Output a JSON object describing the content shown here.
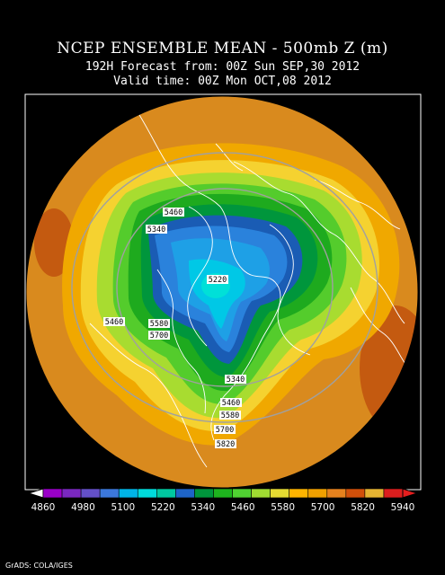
{
  "title": {
    "line1": "NCEP ENSEMBLE MEAN - 500mb Z (m)",
    "line2": "192H Forecast from: 00Z Sun SEP,30 2012",
    "line3": "Valid time: 00Z Mon OCT,08 2012"
  },
  "credit": "GrADS: COLA/IGES",
  "contour_labels": [
    "5460",
    "5340",
    "5220",
    "5460",
    "5580",
    "5700",
    "5340",
    "5460",
    "5580",
    "5700",
    "5820"
  ],
  "colorbar": {
    "ticks": [
      "4860",
      "4980",
      "5100",
      "5220",
      "5340",
      "5460",
      "5580",
      "5700",
      "5820",
      "5940"
    ],
    "colors": [
      "#9a00c8",
      "#7a28c0",
      "#6450c8",
      "#3c78dc",
      "#00b4e6",
      "#00dcdc",
      "#00c8a0",
      "#1e64c8",
      "#00963c",
      "#1eb41e",
      "#50d232",
      "#a0dc32",
      "#e6dc32",
      "#ffb400",
      "#f0a000",
      "#e6821e",
      "#d2500a",
      "#e6b432",
      "#dc1e1e"
    ],
    "left_arrow_color": "#ffffff",
    "right_arrow_color": "#e61e1e"
  },
  "colors": {
    "background": "#000000",
    "outer_orange": "#d98a1e",
    "continents": "#ffffff",
    "grid": "#a0a0a0"
  }
}
